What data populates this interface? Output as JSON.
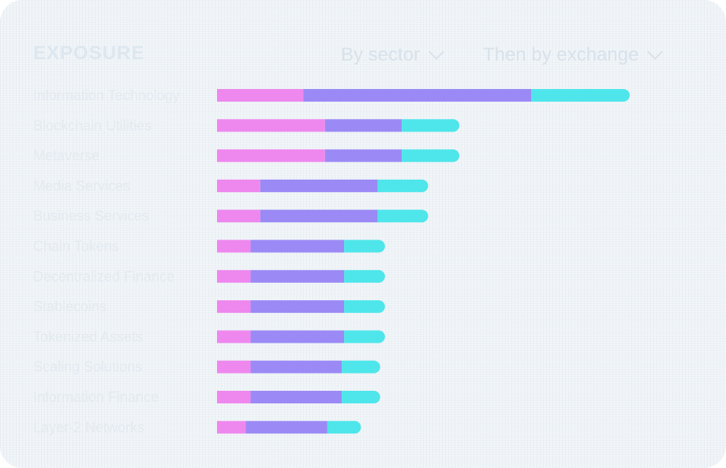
{
  "header": {
    "title": "EXPOSURE",
    "filter1_label": "By sector",
    "filter2_label": "Then by exchange"
  },
  "colors": {
    "series1": "#ee88ee",
    "series2": "#9b8af5",
    "series3": "#4ee6ea",
    "background": "#eef3f7"
  },
  "chart_data": {
    "type": "bar",
    "orientation": "horizontal",
    "stacked": true,
    "categories": [
      "Information Technology",
      "Blockchain Utilities",
      "Metaverse",
      "Media Services",
      "Business Services",
      "Chain Tokens",
      "Decentralized Finance",
      "Stablecoins",
      "Tokenized Assets",
      "Scaling Solutions",
      "Information Finance",
      "Layer-2 Networks"
    ],
    "series": [
      {
        "values": [
          3.6,
          4.5,
          4.5,
          1.8,
          1.8,
          1.4,
          1.4,
          1.4,
          1.4,
          1.4,
          1.4,
          1.2
        ]
      },
      {
        "values": [
          9.5,
          3.2,
          3.2,
          4.9,
          4.9,
          3.9,
          3.9,
          3.9,
          3.9,
          3.8,
          3.8,
          3.4
        ]
      },
      {
        "values": [
          4.1,
          2.4,
          2.4,
          2.1,
          2.1,
          1.7,
          1.7,
          1.7,
          1.7,
          1.6,
          1.6,
          1.4
        ]
      }
    ],
    "value_labels": [
      "",
      "",
      "",
      "",
      "",
      "",
      "",
      "",
      "",
      "",
      "",
      ""
    ],
    "xlim": [
      0,
      18
    ]
  }
}
